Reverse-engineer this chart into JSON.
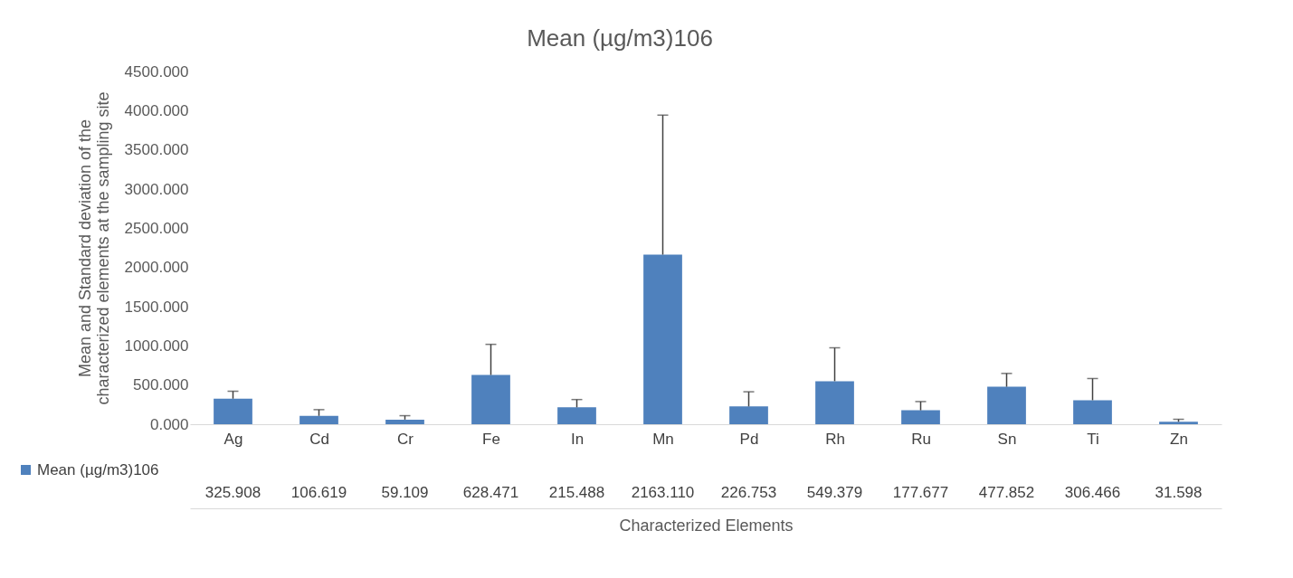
{
  "chart_data": {
    "type": "bar",
    "title": "Mean (µg/m3)106",
    "xlabel": "Characterized Elements",
    "ylabel": "Mean and Standard deviation of the characterized elements at the sampling site",
    "categories": [
      "Ag",
      "Cd",
      "Cr",
      "Fe",
      "In",
      "Mn",
      "Pd",
      "Rh",
      "Ru",
      "Sn",
      "Ti",
      "Zn"
    ],
    "series": [
      {
        "name": "Mean (µg/m3)106",
        "color": "#4f81bd",
        "values": [
          325.908,
          106.619,
          59.109,
          628.471,
          215.488,
          2163.11,
          226.753,
          549.379,
          177.677,
          477.852,
          306.466,
          31.598
        ],
        "errors": [
          [
            325.908,
            421
          ],
          [
            106.619,
            186
          ],
          [
            59.109,
            109
          ],
          [
            628.471,
            1019
          ],
          [
            215.488,
            315
          ],
          [
            2163.11,
            3943
          ],
          [
            226.753,
            414
          ],
          [
            549.379,
            975
          ],
          [
            177.677,
            289
          ],
          [
            477.852,
            648
          ],
          [
            306.466,
            583
          ],
          [
            31.598,
            63
          ]
        ],
        "value_labels": [
          "325.908",
          "106.619",
          "59.109",
          "628.471",
          "215.488",
          "2163.110",
          "226.753",
          "549.379",
          "177.677",
          "477.852",
          "306.466",
          "31.598"
        ]
      }
    ],
    "ylim": [
      0,
      4500
    ],
    "yticks": [
      {
        "value": 0,
        "label": "0.000"
      },
      {
        "value": 500,
        "label": "500.000"
      },
      {
        "value": 1000,
        "label": "1000.000"
      },
      {
        "value": 1500,
        "label": "1500.000"
      },
      {
        "value": 2000,
        "label": "2000.000"
      },
      {
        "value": 2500,
        "label": "2500.000"
      },
      {
        "value": 3000,
        "label": "3000.000"
      },
      {
        "value": 3500,
        "label": "3500.000"
      },
      {
        "value": 4000,
        "label": "4000.000"
      },
      {
        "value": 4500,
        "label": "4500.000"
      }
    ],
    "legend": "bottom left"
  }
}
